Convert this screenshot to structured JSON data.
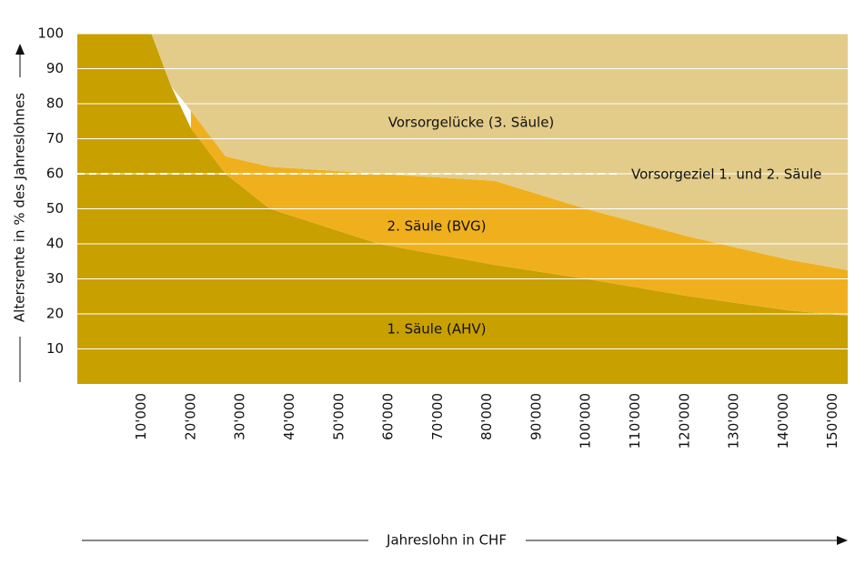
{
  "chart_data": {
    "type": "stacked-area",
    "x_label": "Jahreslohn in CHF",
    "y_label": "Altersrente in % des Jahreslohnes",
    "x": [
      -3000,
      12000,
      16000,
      20000,
      27000,
      36000,
      58000,
      81500,
      100000,
      121000,
      141000,
      153000
    ],
    "series": [
      {
        "name": "1. Säule (AHV)",
        "color": "#c8a000",
        "values": [
          100,
          100,
          85,
          73,
          60,
          50,
          40,
          34,
          30,
          25,
          21,
          19.5
        ]
      },
      {
        "name": "2. Säule (BVG)",
        "color": "#f0b01e",
        "values": [
          null,
          null,
          null,
          5,
          5,
          12,
          20,
          24,
          20,
          17,
          14.5,
          13
        ]
      },
      {
        "name": "Vorsorgelücke (3. Säule)",
        "color": "#e3cc8a",
        "values": [
          0,
          0,
          15,
          22,
          35,
          38,
          40,
          42,
          50,
          58,
          64.5,
          67.5
        ]
      }
    ],
    "annotation": {
      "text": "Vorsorgeziel 1. und 2. Säule",
      "value": 60
    },
    "xlim": [
      -3000,
      153000
    ],
    "ylim": [
      0,
      100
    ],
    "xticks": [
      {
        "value": 10000,
        "label": "10'000"
      },
      {
        "value": 20000,
        "label": "20'000"
      },
      {
        "value": 30000,
        "label": "30'000"
      },
      {
        "value": 40000,
        "label": "40'000"
      },
      {
        "value": 50000,
        "label": "50'000"
      },
      {
        "value": 60000,
        "label": "60'000"
      },
      {
        "value": 70000,
        "label": "70'000"
      },
      {
        "value": 80000,
        "label": "80'000"
      },
      {
        "value": 90000,
        "label": "90'000"
      },
      {
        "value": 100000,
        "label": "100'000"
      },
      {
        "value": 110000,
        "label": "110'000"
      },
      {
        "value": 120000,
        "label": "120'000"
      },
      {
        "value": 130000,
        "label": "130'000"
      },
      {
        "value": 140000,
        "label": "140'000"
      },
      {
        "value": 150000,
        "label": "150'000"
      }
    ],
    "yticks": [
      10,
      20,
      30,
      40,
      50,
      60,
      70,
      80,
      90,
      100
    ],
    "grid": true
  }
}
